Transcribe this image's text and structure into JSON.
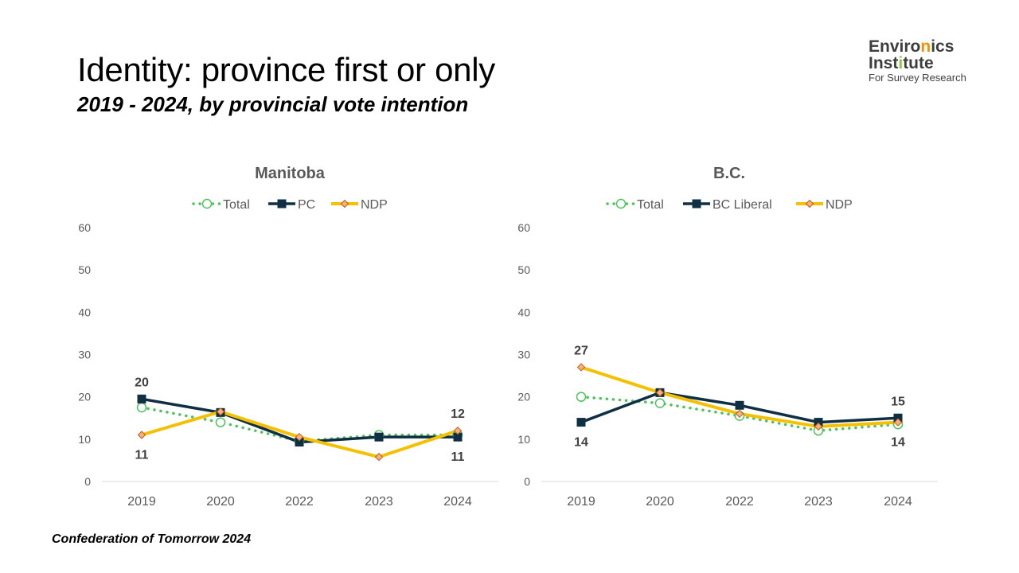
{
  "page": {
    "title": "Identity: province first or only",
    "subtitle": "2019 - 2024, by provincial vote intention",
    "footer": "Confederation of Tomorrow 2024"
  },
  "logo": {
    "line1_a": "Enviro",
    "line1_b": "n",
    "line1_c": "ics",
    "line2_a": "Inst",
    "line2_b": "i",
    "line2_c": "tute",
    "line3": "For Survey Research"
  },
  "colors": {
    "total": "#4cc35a",
    "party_a": "#0e2f44",
    "ndp": "#f5c000",
    "ndp_marker_fill": "#f4b183",
    "ndp_marker_stroke": "#c55a11",
    "axis": "#d9d9d9",
    "logo_accent_orange": "#f39200",
    "logo_accent_green": "#8cc63f"
  },
  "chart_data": [
    {
      "type": "line",
      "title": "Manitoba",
      "categories": [
        "2019",
        "2020",
        "2022",
        "2023",
        "2024"
      ],
      "ylim": [
        0,
        60
      ],
      "yticks": [
        "0",
        "10",
        "20",
        "30",
        "40",
        "50",
        "60"
      ],
      "grid": false,
      "legend_position": "top",
      "series": [
        {
          "name": "Total",
          "style": "dotted-circle",
          "values": [
            17.5,
            14,
            9.5,
            11,
            11
          ]
        },
        {
          "name": "PC",
          "style": "solid-square",
          "values": [
            19.5,
            16.3,
            9.3,
            10.5,
            10.5
          ]
        },
        {
          "name": "NDP",
          "style": "solid-diamond",
          "values": [
            11,
            16.5,
            10.5,
            5.8,
            12
          ]
        }
      ],
      "data_labels": [
        {
          "text": "20",
          "series": "PC",
          "index": 0,
          "pos": "above"
        },
        {
          "text": "11",
          "series": "NDP",
          "index": 0,
          "pos": "below"
        },
        {
          "text": "12",
          "series": "NDP",
          "index": 4,
          "pos": "above"
        },
        {
          "text": "11",
          "series": "PC",
          "index": 4,
          "pos": "below"
        }
      ]
    },
    {
      "type": "line",
      "title": "B.C.",
      "categories": [
        "2019",
        "2020",
        "2022",
        "2023",
        "2024"
      ],
      "ylim": [
        0,
        60
      ],
      "yticks": [
        "0",
        "10",
        "20",
        "30",
        "40",
        "50",
        "60"
      ],
      "grid": false,
      "legend_position": "top",
      "series": [
        {
          "name": "Total",
          "style": "dotted-circle",
          "values": [
            20,
            18.5,
            15.5,
            12,
            13.5
          ]
        },
        {
          "name": "BC Liberal",
          "style": "solid-square",
          "values": [
            14,
            21,
            18,
            14,
            15
          ]
        },
        {
          "name": "NDP",
          "style": "solid-diamond",
          "values": [
            27,
            21,
            16,
            13,
            14
          ]
        }
      ],
      "data_labels": [
        {
          "text": "27",
          "series": "NDP",
          "index": 0,
          "pos": "above"
        },
        {
          "text": "14",
          "series": "BC Liberal",
          "index": 0,
          "pos": "below"
        },
        {
          "text": "15",
          "series": "BC Liberal",
          "index": 4,
          "pos": "above"
        },
        {
          "text": "14",
          "series": "NDP",
          "index": 4,
          "pos": "below"
        }
      ]
    }
  ]
}
